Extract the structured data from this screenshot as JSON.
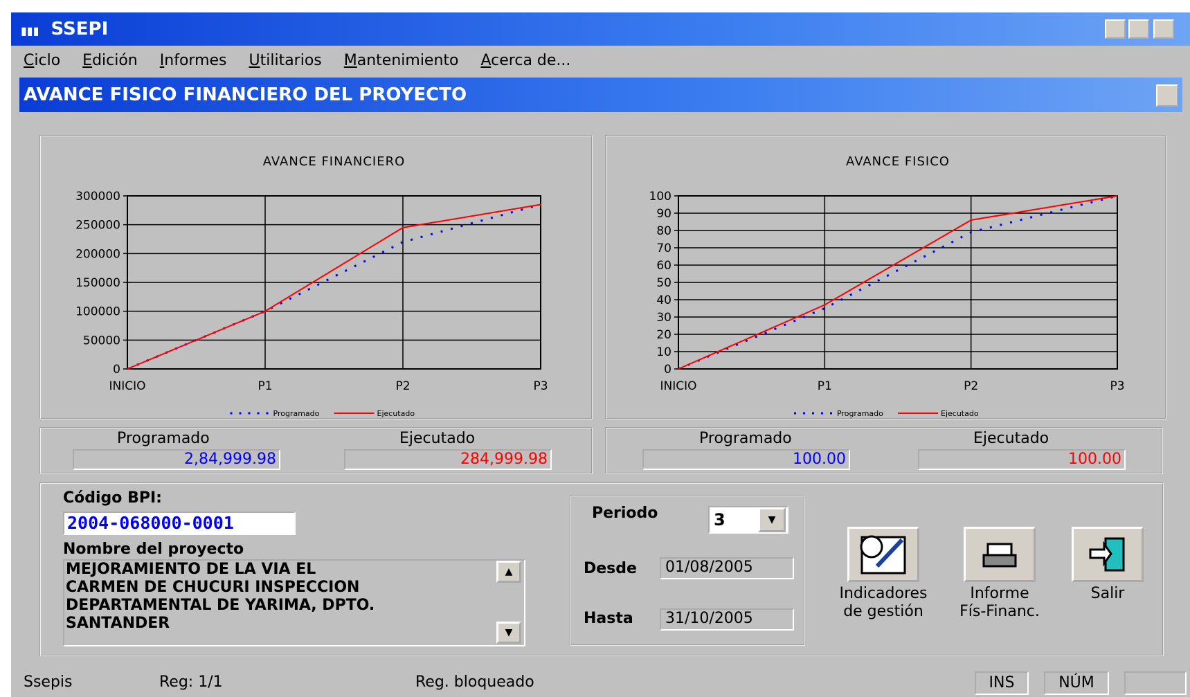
{
  "window": {
    "title": "SSEPI",
    "menu": [
      "Ciclo",
      "Edición",
      "Informes",
      "Utilitarios",
      "Mantenimiento",
      "Acerca de..."
    ]
  },
  "form": {
    "title": "AVANCE FISICO FINANCIERO DEL PROYECTO"
  },
  "chart_data": [
    {
      "type": "line",
      "title": "AVANCE FINANCIERO",
      "categories": [
        "INICIO",
        "P1",
        "P2",
        "P3"
      ],
      "series": [
        {
          "name": "Programado",
          "color": "#0000ff",
          "line_style": "dotted",
          "values": [
            0,
            100000,
            220000,
            285000
          ]
        },
        {
          "name": "Ejecutado",
          "color": "#ff0000",
          "line_style": "solid",
          "values": [
            0,
            100000,
            245000,
            285000
          ]
        }
      ],
      "ylim": [
        0,
        300000
      ],
      "yticks": [
        0,
        50000,
        100000,
        150000,
        200000,
        250000,
        300000
      ],
      "grid": true,
      "legend": "bottom"
    },
    {
      "type": "line",
      "title": "AVANCE FISICO",
      "categories": [
        "INICIO",
        "P1",
        "P2",
        "P3"
      ],
      "series": [
        {
          "name": "Programado",
          "color": "#0000ff",
          "line_style": "dotted",
          "values": [
            0,
            35,
            79,
            100
          ]
        },
        {
          "name": "Ejecutado",
          "color": "#ff0000",
          "line_style": "solid",
          "values": [
            0,
            37,
            86,
            100
          ]
        }
      ],
      "ylim": [
        0,
        100
      ],
      "yticks": [
        0,
        10,
        20,
        30,
        40,
        50,
        60,
        70,
        80,
        90,
        100
      ],
      "grid": true,
      "legend": "bottom"
    }
  ],
  "summary": [
    {
      "programado_label": "Programado",
      "programado": "2,84,999.98",
      "ejecutado_label": "Ejecutado",
      "ejecutado": "284,999.98"
    },
    {
      "programado_label": "Programado",
      "programado": "100.00",
      "ejecutado_label": "Ejecutado",
      "ejecutado": "100.00"
    }
  ],
  "project": {
    "code_label": "Código BPI:",
    "code": "2004-068000-0001",
    "name_label": "Nombre del proyecto",
    "name_lines": [
      "MEJORAMIENTO DE LA VIA EL",
      "CARMEN DE CHUCURI INSPECCION",
      "DEPARTAMENTAL DE YARIMA, DPTO.",
      "SANTANDER"
    ]
  },
  "period": {
    "label": "Periodo",
    "value": "3",
    "from_label": "Desde",
    "from": "01/08/2005",
    "to_label": "Hasta",
    "to": "31/10/2005"
  },
  "buttons": [
    {
      "lines": [
        "Indicadores",
        "de gestión"
      ]
    },
    {
      "lines": [
        "Informe",
        "Fís-Financ."
      ]
    },
    {
      "lines": [
        "Salir"
      ]
    }
  ],
  "status": {
    "app": "Ssepis",
    "record": "Reg: 1/1",
    "state": "Reg. bloqueado",
    "ins": "INS",
    "num": "NÚM"
  }
}
